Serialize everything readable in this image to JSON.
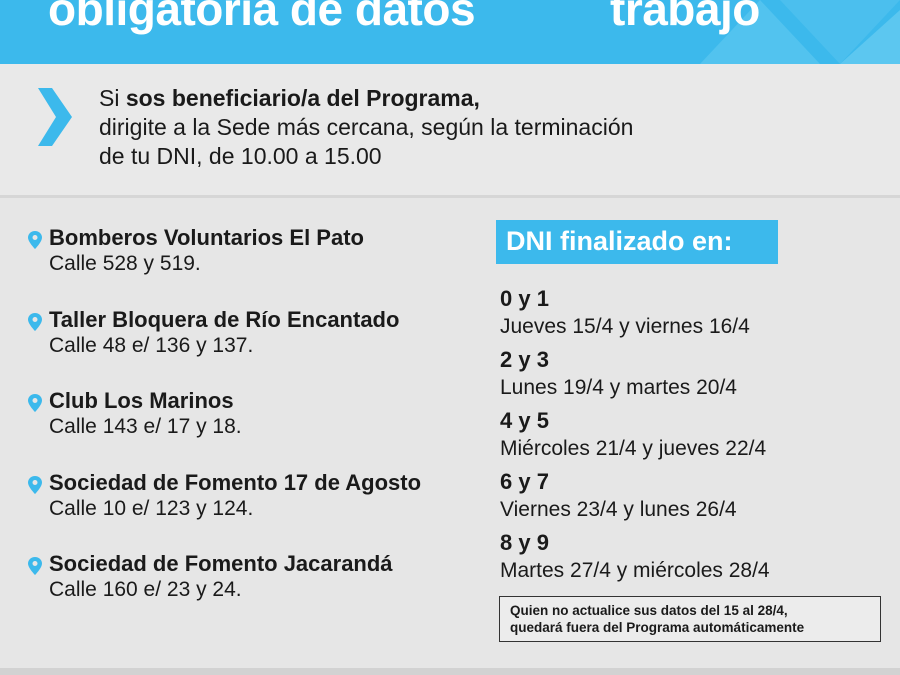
{
  "header": {
    "title_left": "obligatoria de datos",
    "title_right": "trabajo",
    "color": "#3cb9ec"
  },
  "intro": {
    "prefix": "Si ",
    "bold": "sos beneficiario/a del Programa,",
    "line2": "dirigite a la Sede más cercana, según la terminación",
    "line3": "de tu DNI, de 10.00 a 15.00",
    "icon": "chevron-right-icon"
  },
  "sedes": [
    {
      "name": "Bomberos Voluntarios El Pato",
      "address": "Calle 528 y 519."
    },
    {
      "name": "Taller Bloquera de Río Encantado",
      "address": "Calle 48 e/ 136 y 137."
    },
    {
      "name": "Club Los Marinos",
      "address": "Calle 143 e/ 17 y 18."
    },
    {
      "name": "Sociedad de Fomento 17 de Agosto",
      "address": "Calle 10 e/ 123 y 124."
    },
    {
      "name": "Sociedad de Fomento Jacarandá",
      "address": "Calle 160 e/ 23 y 24."
    }
  ],
  "dni": {
    "heading": "DNI finalizado en:",
    "groups": [
      {
        "digits": "0 y 1",
        "dates": "Jueves 15/4 y viernes 16/4"
      },
      {
        "digits": "2 y 3",
        "dates": "Lunes 19/4 y martes 20/4"
      },
      {
        "digits": "4 y 5",
        "dates": "Miércoles 21/4 y jueves 22/4"
      },
      {
        "digits": "6 y 7",
        "dates": "Viernes 23/4 y lunes 26/4"
      },
      {
        "digits": "8 y 9",
        "dates": "Martes 27/4 y miércoles 28/4"
      }
    ]
  },
  "note": {
    "line1": "Quien no actualice sus datos del 15 al 28/4,",
    "line2": "quedará fuera del Programa automáticamente"
  }
}
